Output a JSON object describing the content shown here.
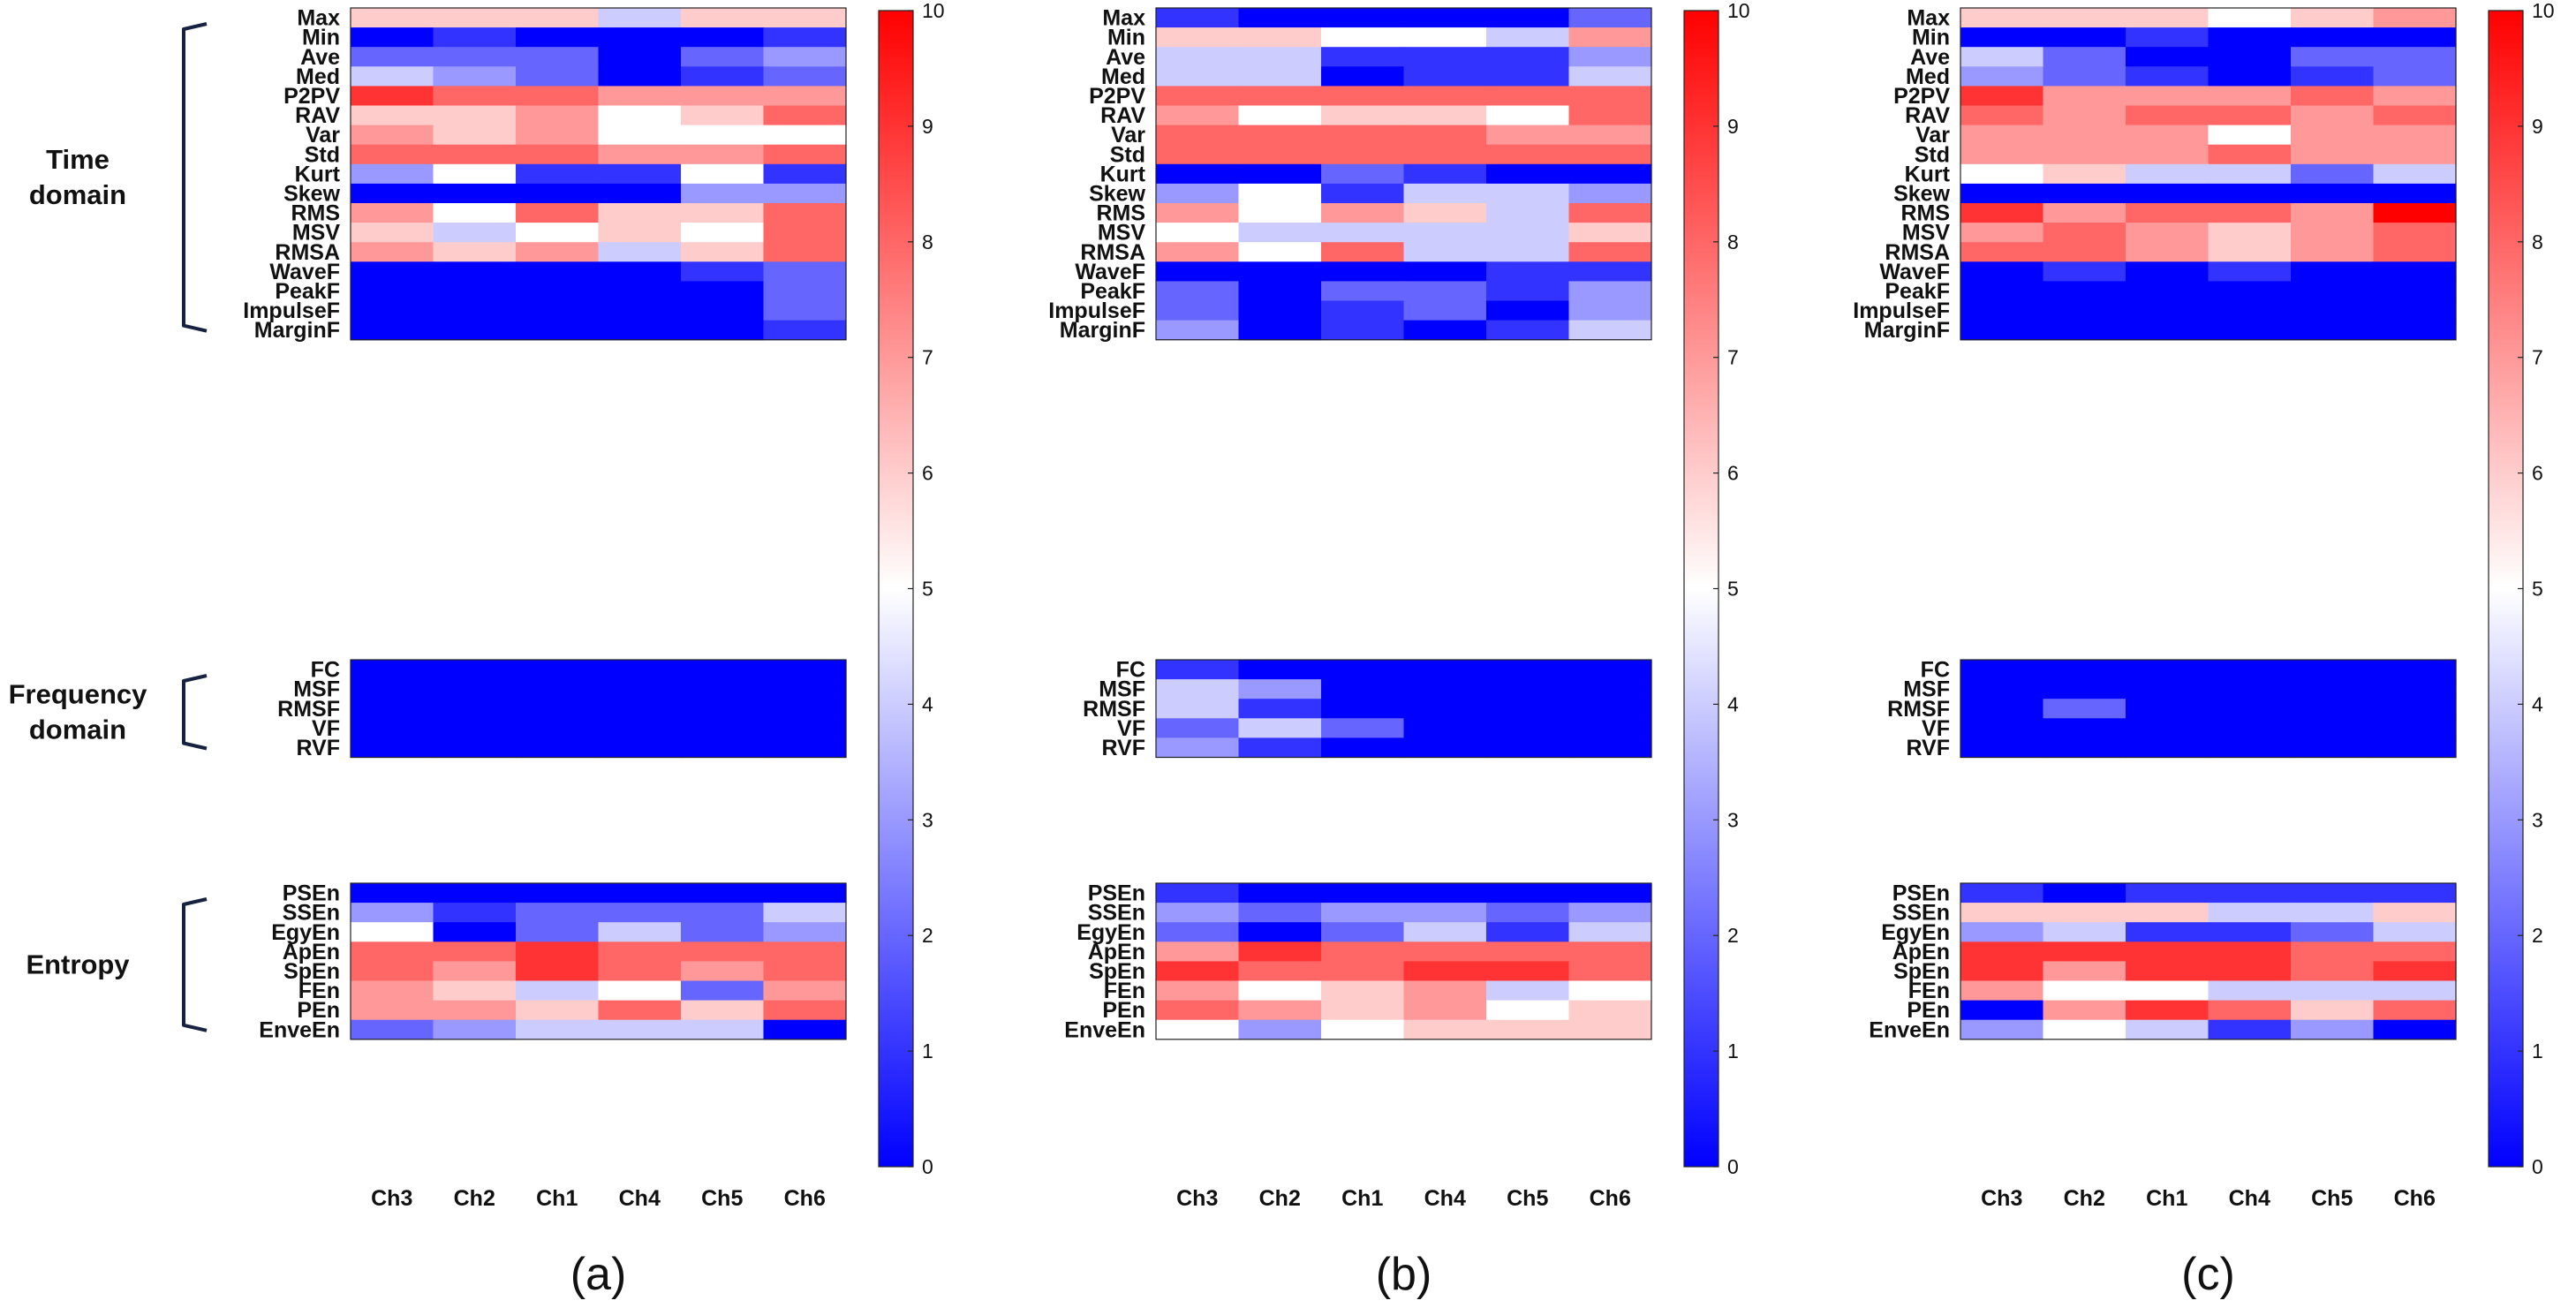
{
  "chart_data": [
    {
      "type": "heatmap",
      "label": "(a)",
      "columns": [
        "Ch3",
        "Ch2",
        "Ch1",
        "Ch4",
        "Ch5",
        "Ch6"
      ],
      "groups": [
        {
          "rows": [
            "Max",
            "Min",
            "Ave",
            "Med",
            "P2PV",
            "RAV",
            "Var",
            "Std",
            "Kurt",
            "Skew",
            "RMS",
            "MSV",
            "RMSA",
            "WaveF",
            "PeakF",
            "ImpulseF",
            "MarginF"
          ],
          "values": [
            [
              6,
              6,
              6,
              4,
              6,
              6
            ],
            [
              0,
              1,
              0,
              0,
              0,
              1
            ],
            [
              2,
              2,
              2,
              0,
              2,
              3
            ],
            [
              4,
              3,
              2,
              0,
              1,
              2
            ],
            [
              9,
              8,
              8,
              7,
              7,
              7
            ],
            [
              6,
              6,
              7,
              5,
              6,
              8
            ],
            [
              7,
              6,
              7,
              5,
              5,
              5
            ],
            [
              8,
              8,
              8,
              7,
              7,
              8
            ],
            [
              3,
              5,
              1,
              1,
              5,
              1
            ],
            [
              0,
              0,
              0,
              0,
              3,
              3
            ],
            [
              7,
              5,
              8,
              6,
              6,
              8
            ],
            [
              6,
              4,
              5,
              6,
              5,
              8
            ],
            [
              7,
              6,
              7,
              4,
              6,
              8
            ],
            [
              0,
              0,
              0,
              0,
              1,
              2
            ],
            [
              0,
              0,
              0,
              0,
              0,
              2
            ],
            [
              0,
              0,
              0,
              0,
              0,
              2
            ],
            [
              0,
              0,
              0,
              0,
              0,
              1
            ]
          ]
        },
        {
          "rows": [
            "FC",
            "MSF",
            "RMSF",
            "VF",
            "RVF"
          ],
          "values": [
            [
              0,
              0,
              0,
              0,
              0,
              0
            ],
            [
              0,
              0,
              0,
              0,
              0,
              0
            ],
            [
              0,
              0,
              0,
              0,
              0,
              0
            ],
            [
              0,
              0,
              0,
              0,
              0,
              0
            ],
            [
              0,
              0,
              0,
              0,
              0,
              0
            ]
          ]
        },
        {
          "rows": [
            "PSEn",
            "SSEn",
            "EgyEn",
            "ApEn",
            "SpEn",
            "FEn",
            "PEn",
            "EnveEn"
          ],
          "values": [
            [
              0,
              0,
              0,
              0,
              0,
              0
            ],
            [
              3,
              1,
              2,
              2,
              2,
              4
            ],
            [
              5,
              0,
              2,
              4,
              2,
              3
            ],
            [
              8,
              8,
              9,
              8,
              8,
              8
            ],
            [
              8,
              7,
              9,
              8,
              7,
              8
            ],
            [
              7,
              6,
              4,
              5,
              2,
              7
            ],
            [
              7,
              7,
              6,
              8,
              6,
              8
            ],
            [
              2,
              3,
              4,
              4,
              4,
              0
            ]
          ]
        }
      ],
      "colorbar": {
        "min": 0,
        "max": 10,
        "ticks": [
          0,
          1,
          2,
          3,
          4,
          5,
          6,
          7,
          8,
          9,
          10
        ],
        "low": "#0000ff",
        "mid": "#ffffff",
        "high": "#ff0000"
      }
    },
    {
      "type": "heatmap",
      "label": "(b)",
      "columns": [
        "Ch3",
        "Ch2",
        "Ch1",
        "Ch4",
        "Ch5",
        "Ch6"
      ],
      "groups": [
        {
          "rows": [
            "Max",
            "Min",
            "Ave",
            "Med",
            "P2PV",
            "RAV",
            "Var",
            "Std",
            "Kurt",
            "Skew",
            "RMS",
            "MSV",
            "RMSA",
            "WaveF",
            "PeakF",
            "ImpulseF",
            "MarginF"
          ],
          "values": [
            [
              1,
              0,
              0,
              0,
              0,
              2
            ],
            [
              6,
              6,
              5,
              5,
              4,
              7
            ],
            [
              4,
              4,
              1,
              1,
              1,
              3
            ],
            [
              4,
              4,
              0,
              1,
              1,
              4
            ],
            [
              8,
              8,
              8,
              8,
              8,
              8
            ],
            [
              7,
              5,
              6,
              6,
              5,
              8
            ],
            [
              8,
              8,
              8,
              8,
              7,
              7
            ],
            [
              8,
              8,
              8,
              8,
              8,
              8
            ],
            [
              0,
              0,
              2,
              1,
              0,
              0
            ],
            [
              3,
              5,
              1,
              4,
              4,
              3
            ],
            [
              7,
              5,
              7,
              6,
              4,
              8
            ],
            [
              5,
              4,
              4,
              4,
              4,
              6
            ],
            [
              7,
              5,
              8,
              4,
              4,
              8
            ],
            [
              0,
              0,
              0,
              0,
              1,
              1
            ],
            [
              2,
              0,
              2,
              2,
              1,
              3
            ],
            [
              2,
              0,
              1,
              2,
              0,
              3
            ],
            [
              3,
              0,
              1,
              0,
              1,
              4
            ]
          ]
        },
        {
          "rows": [
            "FC",
            "MSF",
            "RMSF",
            "VF",
            "RVF"
          ],
          "values": [
            [
              1,
              0,
              0,
              0,
              0,
              0
            ],
            [
              4,
              3,
              0,
              0,
              0,
              0
            ],
            [
              4,
              1,
              0,
              0,
              0,
              0
            ],
            [
              2,
              4,
              2,
              0,
              0,
              0
            ],
            [
              3,
              1,
              0,
              0,
              0,
              0
            ]
          ]
        },
        {
          "rows": [
            "PSEn",
            "SSEn",
            "EgyEn",
            "ApEn",
            "SpEn",
            "FEn",
            "PEn",
            "EnveEn"
          ],
          "values": [
            [
              1,
              0,
              0,
              0,
              0,
              0
            ],
            [
              3,
              2,
              3,
              3,
              2,
              3
            ],
            [
              2,
              0,
              2,
              4,
              1,
              4
            ],
            [
              7,
              9,
              8,
              8,
              8,
              8
            ],
            [
              9,
              8,
              8,
              9,
              9,
              8
            ],
            [
              7,
              5,
              6,
              7,
              4,
              5
            ],
            [
              8,
              7,
              6,
              7,
              5,
              6
            ],
            [
              5,
              3,
              5,
              6,
              6,
              6
            ]
          ]
        }
      ],
      "colorbar": {
        "min": 0,
        "max": 10,
        "ticks": [
          0,
          1,
          2,
          3,
          4,
          5,
          6,
          7,
          8,
          9,
          10
        ],
        "low": "#0000ff",
        "mid": "#ffffff",
        "high": "#ff0000"
      }
    },
    {
      "type": "heatmap",
      "label": "(c)",
      "columns": [
        "Ch3",
        "Ch2",
        "Ch1",
        "Ch4",
        "Ch5",
        "Ch6"
      ],
      "groups": [
        {
          "rows": [
            "Max",
            "Min",
            "Ave",
            "Med",
            "P2PV",
            "RAV",
            "Var",
            "Std",
            "Kurt",
            "Skew",
            "RMS",
            "MSV",
            "RMSA",
            "WaveF",
            "PeakF",
            "ImpulseF",
            "MarginF"
          ],
          "values": [
            [
              6,
              6,
              6,
              5,
              6,
              7
            ],
            [
              0,
              0,
              1,
              0,
              0,
              0
            ],
            [
              4,
              2,
              0,
              0,
              2,
              2
            ],
            [
              3,
              2,
              1,
              0,
              1,
              2
            ],
            [
              9,
              7,
              7,
              7,
              8,
              7
            ],
            [
              8,
              7,
              8,
              8,
              7,
              8
            ],
            [
              7,
              7,
              7,
              5,
              7,
              7
            ],
            [
              7,
              7,
              7,
              8,
              7,
              7
            ],
            [
              5,
              6,
              4,
              4,
              2,
              4
            ],
            [
              0,
              0,
              0,
              0,
              0,
              0
            ],
            [
              9,
              7,
              8,
              8,
              7,
              10
            ],
            [
              7,
              8,
              7,
              6,
              7,
              8
            ],
            [
              8,
              8,
              7,
              6,
              7,
              8
            ],
            [
              0,
              1,
              0,
              1,
              0,
              0
            ],
            [
              0,
              0,
              0,
              0,
              0,
              0
            ],
            [
              0,
              0,
              0,
              0,
              0,
              0
            ],
            [
              0,
              0,
              0,
              0,
              0,
              0
            ]
          ]
        },
        {
          "rows": [
            "FC",
            "MSF",
            "RMSF",
            "VF",
            "RVF"
          ],
          "values": [
            [
              0,
              0,
              0,
              0,
              0,
              0
            ],
            [
              0,
              0,
              0,
              0,
              0,
              0
            ],
            [
              0,
              2,
              0,
              0,
              0,
              0
            ],
            [
              0,
              0,
              0,
              0,
              0,
              0
            ],
            [
              0,
              0,
              0,
              0,
              0,
              0
            ]
          ]
        },
        {
          "rows": [
            "PSEn",
            "SSEn",
            "EgyEn",
            "ApEn",
            "SpEn",
            "FEn",
            "PEn",
            "EnveEn"
          ],
          "values": [
            [
              1,
              0,
              1,
              1,
              1,
              1
            ],
            [
              6,
              6,
              6,
              4,
              4,
              6
            ],
            [
              3,
              4,
              1,
              1,
              2,
              4
            ],
            [
              9,
              9,
              9,
              9,
              8,
              8
            ],
            [
              9,
              7,
              9,
              9,
              8,
              9
            ],
            [
              7,
              5,
              5,
              4,
              4,
              4
            ],
            [
              0,
              7,
              9,
              8,
              6,
              8
            ],
            [
              3,
              5,
              4,
              1,
              3,
              0
            ]
          ]
        }
      ],
      "colorbar": {
        "min": 0,
        "max": 10,
        "ticks": [
          0,
          1,
          2,
          3,
          4,
          5,
          6,
          7,
          8,
          9,
          10
        ],
        "low": "#0000ff",
        "mid": "#ffffff",
        "high": "#ff0000"
      }
    }
  ],
  "group_labels": [
    {
      "lines": [
        "Time",
        "domain"
      ]
    },
    {
      "lines": [
        "Frequency",
        "domain"
      ]
    },
    {
      "lines": [
        "Entropy"
      ]
    }
  ]
}
